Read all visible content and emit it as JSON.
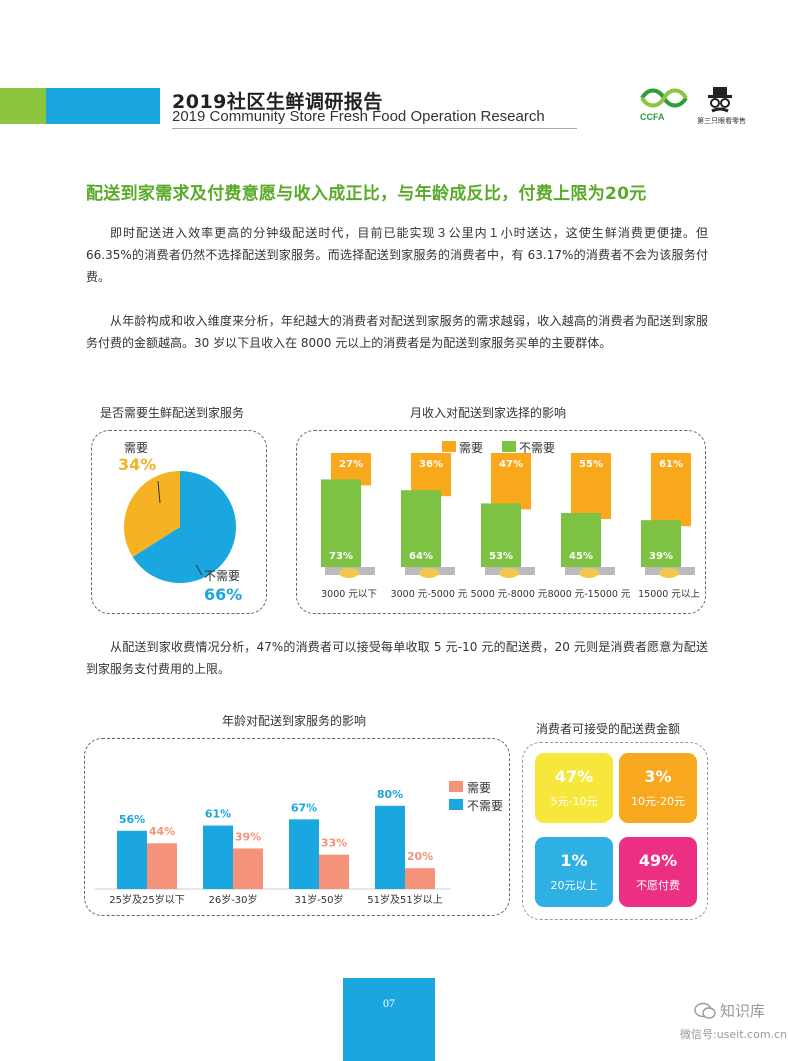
{
  "header": {
    "title": "2019社区生鲜调研报告",
    "subtitle": "2019 Community Store Fresh Food Operation Research",
    "logo_left_text": "CCFA",
    "logo_right_text": "第三只眼看零售"
  },
  "headline": "配送到家需求及付费意愿与收入成正比，与年龄成反比，付费上限为20元",
  "paragraphs": {
    "p1": "即时配送进入效率更高的分钟级配送时代，目前已能实现３公里内１小时送达，这使生鲜消费更便捷。但 66.35%的消费者仍然不选择配送到家服务。而选择配送到家服务的消费者中，有 63.17%的消费者不会为该服务付费。",
    "p2": "从年龄构成和收入维度来分析，年纪越大的消费者对配送到家服务的需求越弱，收入越高的消费者为配送到家服务付费的金额越高。30 岁以下且收入在 8000 元以上的消费者是为配送到家服务买单的主要群体。",
    "p3": "从配送到家收费情况分析，47%的消费者可以接受每单收取 5 元-10 元的配送费，20 元则是消费者愿意为配送到家服务支付费用的上限。"
  },
  "chart_pie": {
    "title": "是否需要生鲜配送到家服务",
    "chart_data": {
      "type": "pie",
      "slices": [
        {
          "label": "需要",
          "value": 34,
          "display": "34%",
          "color": "#f5b324"
        },
        {
          "label": "不需要",
          "value": 66,
          "display": "66%",
          "color": "#1aa7e0"
        }
      ]
    }
  },
  "chart_income": {
    "title": "月收入对配送到家选择的影响",
    "legend": [
      {
        "name": "需要",
        "color": "#f9a81b"
      },
      {
        "name": "不需要",
        "color": "#7dc242"
      }
    ],
    "chart_data": {
      "type": "bar",
      "categories": [
        "3000 元以下",
        "3000 元-5000 元",
        "5000 元-8000 元",
        "8000 元-15000 元",
        "15000 元以上"
      ],
      "series": [
        {
          "name": "需要",
          "values": [
            27,
            36,
            47,
            55,
            61
          ],
          "labels": [
            "27%",
            "36%",
            "47%",
            "55%",
            "61%"
          ]
        },
        {
          "name": "不需要",
          "values": [
            73,
            64,
            53,
            45,
            39
          ],
          "labels": [
            "73%",
            "64%",
            "53%",
            "45%",
            "39%"
          ]
        }
      ],
      "ylim": [
        0,
        100
      ]
    }
  },
  "chart_age": {
    "title": "年龄对配送到家服务的影响",
    "legend": [
      {
        "name": "需要",
        "color": "#f4937a"
      },
      {
        "name": "不需要",
        "color": "#1aa7e0"
      }
    ],
    "chart_data": {
      "type": "bar",
      "categories": [
        "25岁及25岁以下",
        "26岁-30岁",
        "31岁-50岁",
        "51岁及51岁以上"
      ],
      "series": [
        {
          "name": "不需要",
          "values": [
            56,
            61,
            67,
            80
          ],
          "labels": [
            "56%",
            "61%",
            "67%",
            "80%"
          ]
        },
        {
          "name": "需要",
          "values": [
            44,
            39,
            33,
            20
          ],
          "labels": [
            "44%",
            "39%",
            "33%",
            "20%"
          ]
        }
      ],
      "ylim": [
        0,
        100
      ]
    }
  },
  "chart_fee": {
    "title": "消费者可接受的配送费金额",
    "tiles": [
      {
        "pct": "47%",
        "label": "5元-10元",
        "color": "#f7e73b"
      },
      {
        "pct": "3%",
        "label": "10元-20元",
        "color": "#f7a81e"
      },
      {
        "pct": "1%",
        "label": "20元以上",
        "color": "#2fb0e4"
      },
      {
        "pct": "49%",
        "label": "不愿付费",
        "color": "#ec2f83"
      }
    ]
  },
  "page_number": "07",
  "watermark": {
    "line1": "知识库",
    "line2": "微信号:useit.com.cn"
  }
}
